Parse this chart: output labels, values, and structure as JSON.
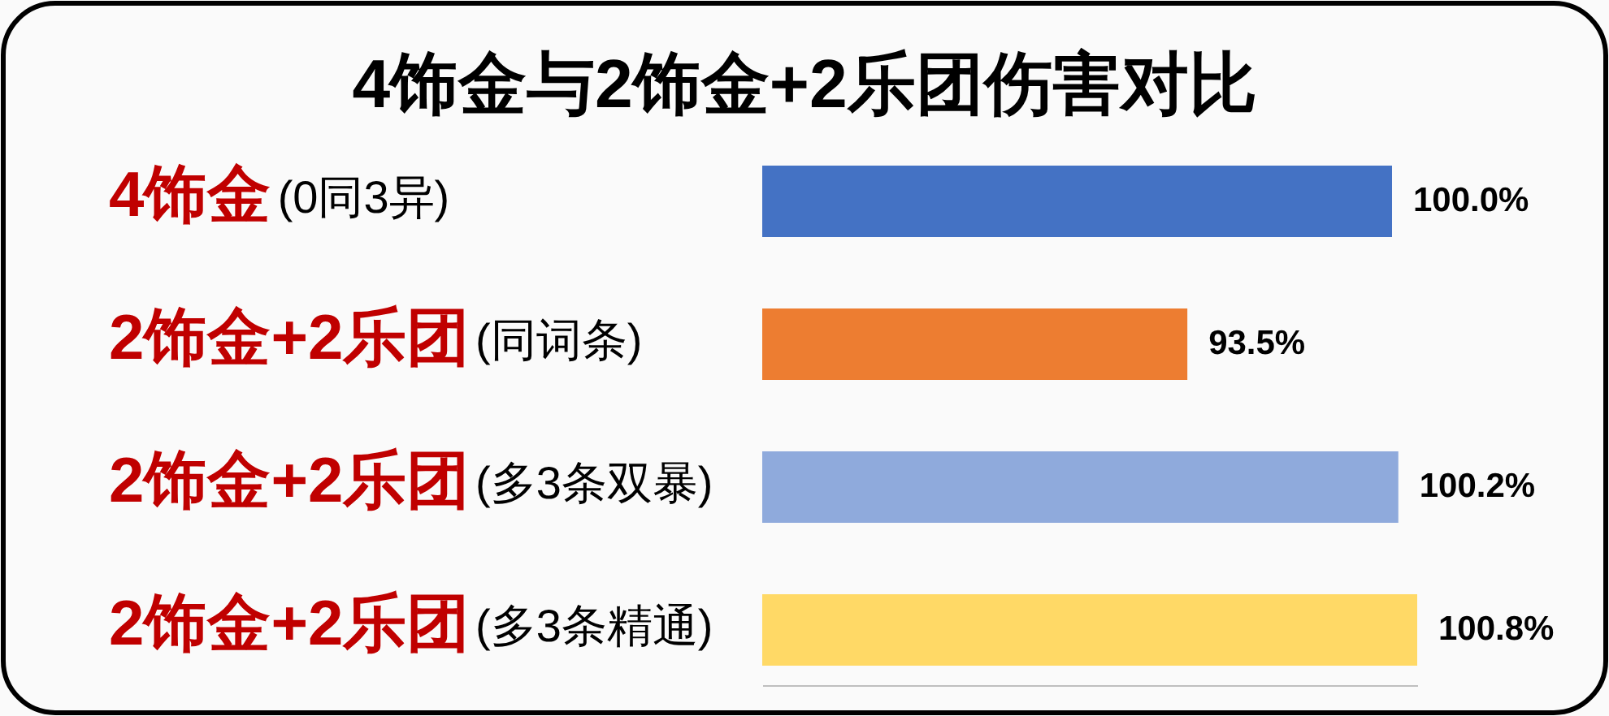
{
  "chart_data": {
    "type": "bar",
    "orientation": "horizontal",
    "title": "4饰金与2饰金+2乐团伤害对比",
    "categories": [
      "4饰金(0同3异)",
      "2饰金+2乐团(同词条)",
      "2饰金+2乐团(多3条双暴)",
      "2饰金+2乐团(多3条精通)"
    ],
    "values": [
      100.0,
      93.5,
      100.2,
      100.8
    ],
    "value_labels": [
      "100.0%",
      "93.5%",
      "100.2%",
      "100.8%"
    ],
    "colors": [
      "#4472c4",
      "#ed7d31",
      "#8faadc",
      "#ffd966"
    ],
    "xlim": [
      80,
      100.8
    ],
    "tick_labels": "y"
  }
}
